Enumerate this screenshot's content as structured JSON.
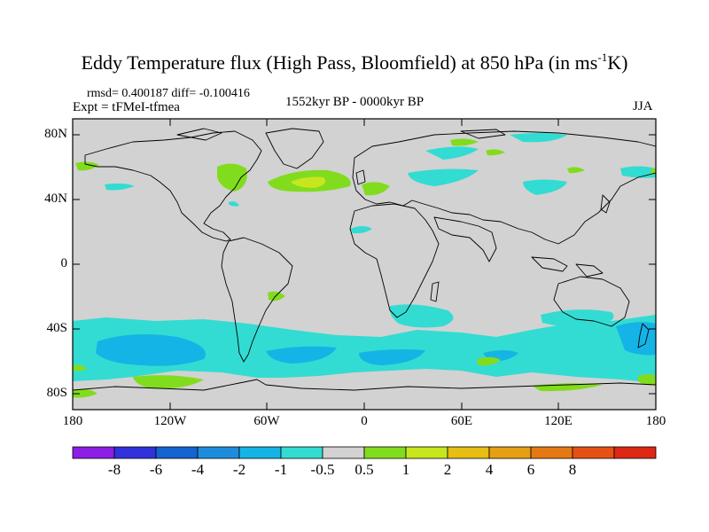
{
  "title": {
    "main": "Eddy Temperature flux (High Pass, Bloomfield) at 850 hPa (in ms",
    "sup": "-1",
    "end": "K)"
  },
  "stats": "rmsd= 0.400187 diff= -0.100416",
  "experiment": "Expt = tFMeI-tfmea",
  "period": "1552kyr BP - 0000kyr BP",
  "season": "JJA",
  "lat_labels": [
    "80N",
    "40N",
    "0",
    "40S",
    "80S"
  ],
  "lon_labels": [
    "180",
    "120W",
    "60W",
    "0",
    "60E",
    "120E",
    "180"
  ],
  "colorbar": {
    "colors": [
      "#8c1ee6",
      "#3232dc",
      "#1464d2",
      "#1e8cdc",
      "#14b4e6",
      "#32dcd2",
      "#d2d2d2",
      "#82dc1e",
      "#c8e61e",
      "#e6be14",
      "#e6a014",
      "#e67814",
      "#e65014",
      "#dc2814"
    ],
    "labels": [
      "-8",
      "-6",
      "-4",
      "-2",
      "-1",
      "-0.5",
      "0.5",
      "1",
      "2",
      "4",
      "6",
      "8"
    ]
  },
  "map_colors": {
    "background": "#d2d2d2",
    "neg1": "#32dcd2",
    "neg2": "#14b4e6",
    "pos1": "#82dc1e",
    "pos2": "#c8e61e"
  }
}
